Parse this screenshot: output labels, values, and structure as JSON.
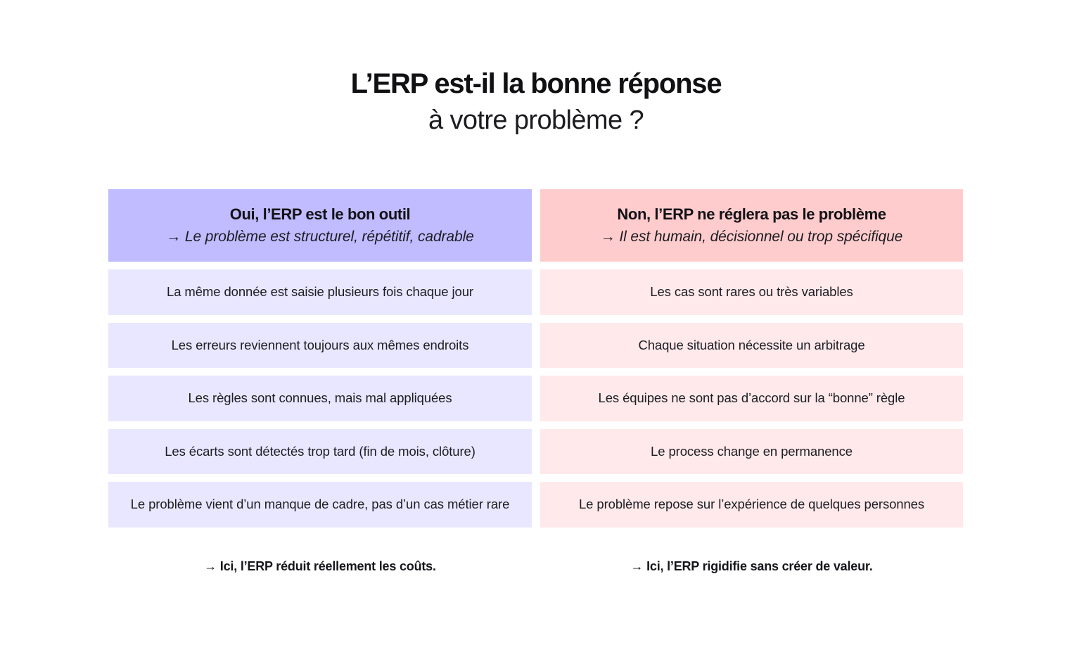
{
  "title": {
    "main": "L’ERP est-il la bonne réponse",
    "sub": "à votre problème ?"
  },
  "columns": [
    {
      "heading": "Oui, l’ERP est le bon outil",
      "subheading": "→ Le problème est structurel, répétitif, cadrable",
      "header_color": "#c0bcff",
      "row_color": "#e9e7ff",
      "rows": [
        "La même donnée est saisie plusieurs fois chaque jour",
        "Les erreurs reviennent toujours aux mêmes endroits",
        "Les règles sont connues, mais mal appliquées",
        "Les écarts sont détectés trop tard (fin de mois, clôture)",
        "Le problème vient d’un manque de cadre, pas d’un cas métier rare"
      ],
      "conclusion": "→ Ici, l’ERP réduit réellement les coûts."
    },
    {
      "heading": "Non, l’ERP ne réglera pas le problème",
      "subheading": "→ Il est humain, décisionnel ou trop spécifique",
      "header_color": "#ffcccd",
      "row_color": "#ffe9ea",
      "rows": [
        "Les cas sont rares ou très variables",
        "Chaque situation nécessite un arbitrage",
        "Les équipes ne sont pas d’accord sur la “bonne” règle",
        "Le process change en permanence",
        "Le problème repose sur l’expérience de quelques personnes"
      ],
      "conclusion": "→ Ici, l’ERP rigidifie sans créer de valeur."
    }
  ]
}
